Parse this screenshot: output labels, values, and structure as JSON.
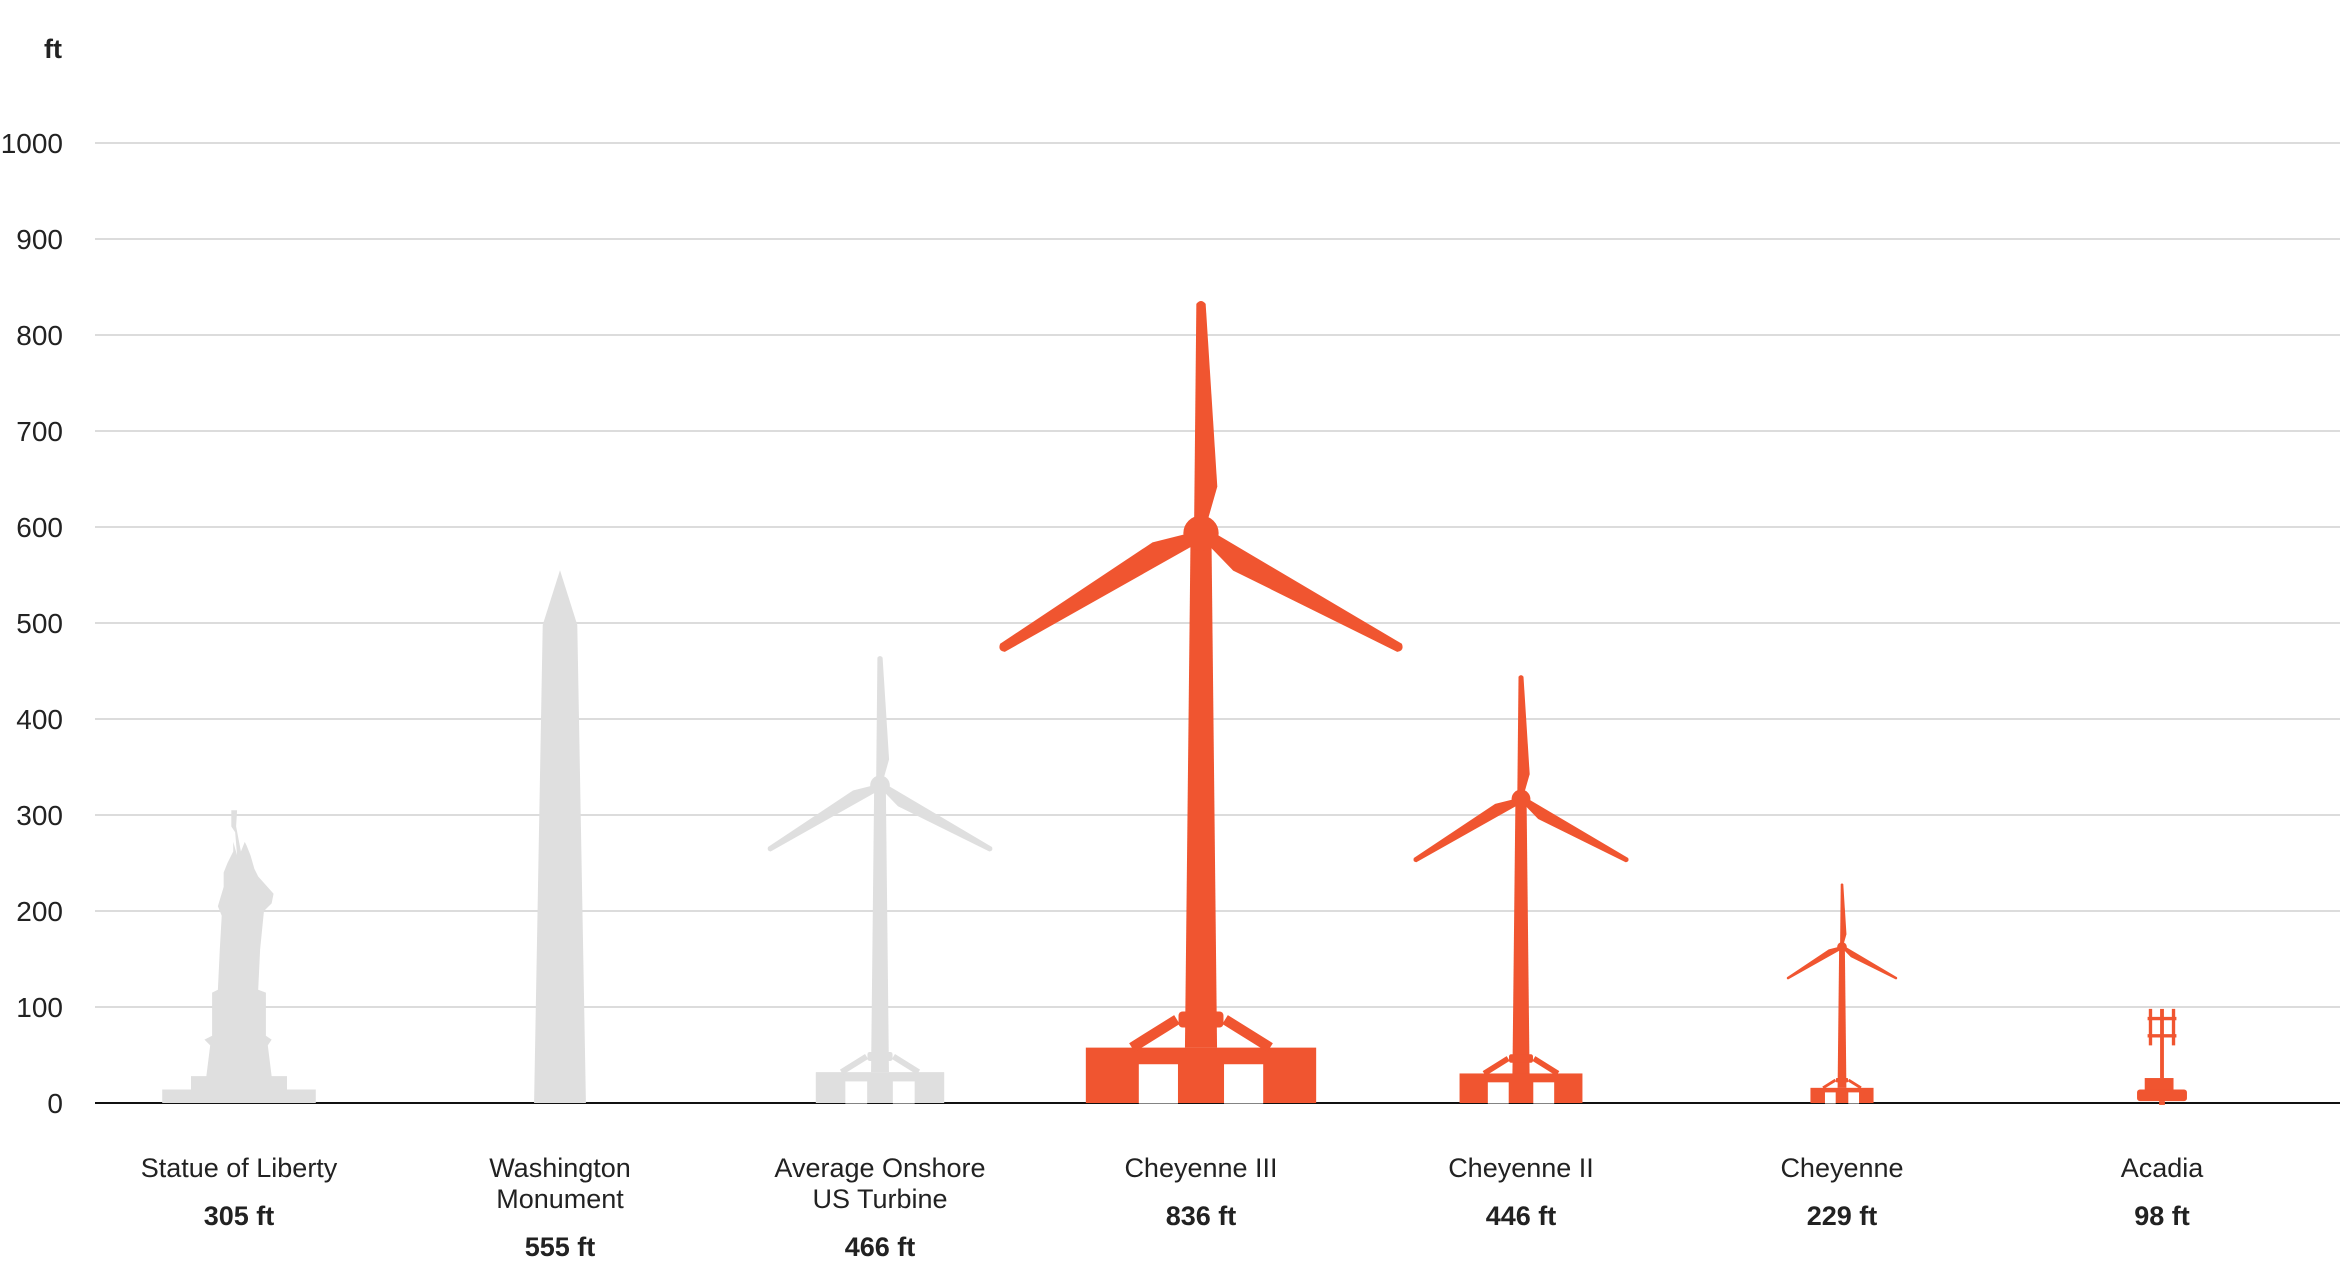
{
  "chart_data": {
    "type": "bar",
    "ylabel": "ft",
    "ylim": [
      0,
      1000
    ],
    "yticks": [
      "0",
      "100",
      "200",
      "300",
      "400",
      "500",
      "600",
      "700",
      "800",
      "900",
      "1000"
    ],
    "grid": true,
    "categories": [
      {
        "name_lines": [
          "Statue of Liberty"
        ],
        "value_label": "305 ft",
        "shape": "statue"
      },
      {
        "name_lines": [
          "Washington",
          "Monument"
        ],
        "value_label": "555 ft",
        "shape": "obelisk"
      },
      {
        "name_lines": [
          "Average Onshore",
          "US Turbine"
        ],
        "value_label": "466 ft",
        "shape": "turbine"
      },
      {
        "name_lines": [
          "Cheyenne III"
        ],
        "value_label": "836 ft",
        "shape": "turbine"
      },
      {
        "name_lines": [
          "Cheyenne II"
        ],
        "value_label": "446 ft",
        "shape": "turbine"
      },
      {
        "name_lines": [
          "Cheyenne"
        ],
        "value_label": "229 ft",
        "shape": "turbine"
      },
      {
        "name_lines": [
          "Acadia"
        ],
        "value_label": "98 ft",
        "shape": "acadia"
      }
    ],
    "values": [
      305,
      555,
      466,
      836,
      446,
      229,
      98
    ],
    "colors": [
      "#dfdfdf",
      "#dfdfdf",
      "#dfdfdf",
      "#f05530",
      "#f05530",
      "#f05530",
      "#f05530"
    ]
  }
}
